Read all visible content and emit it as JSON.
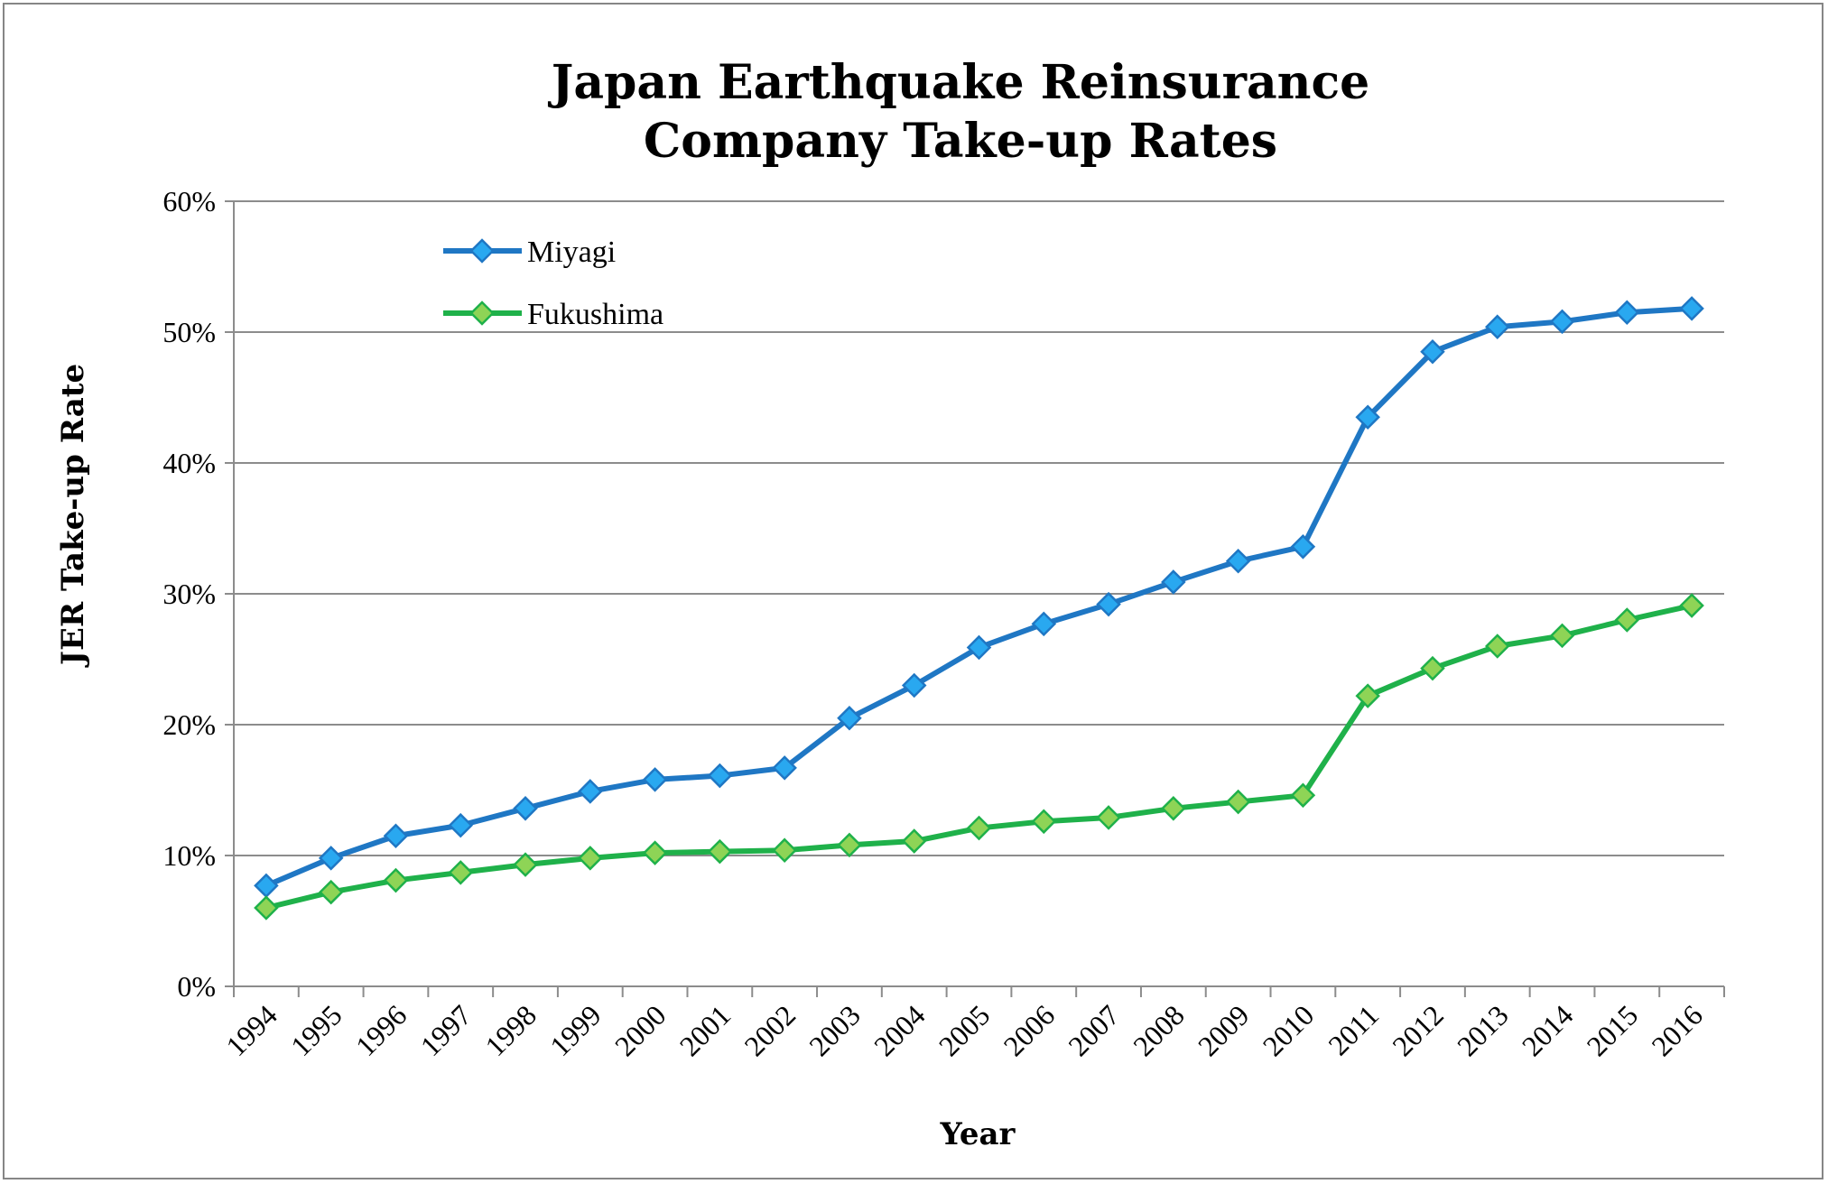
{
  "chart_data": {
    "type": "line",
    "title": [
      "Japan Earthquake Reinsurance",
      "Company Take-up Rates"
    ],
    "xlabel": "Year",
    "ylabel": "JER Take-up Rate",
    "categories": [
      "1994",
      "1995",
      "1996",
      "1997",
      "1998",
      "1999",
      "2000",
      "2001",
      "2002",
      "2003",
      "2004",
      "2005",
      "2006",
      "2007",
      "2008",
      "2009",
      "2010",
      "2011",
      "2012",
      "2013",
      "2014",
      "2015",
      "2016"
    ],
    "ylim": [
      0,
      60
    ],
    "yticks": [
      0,
      10,
      20,
      30,
      40,
      50,
      60
    ],
    "ytick_labels": [
      "0%",
      "10%",
      "20%",
      "30%",
      "40%",
      "50%",
      "60%"
    ],
    "grid": "horizontal",
    "legend": "top-left",
    "series": [
      {
        "name": "Miyagi",
        "color": "#1f77c4",
        "marker_fill": "#29a8f0",
        "values": [
          7.7,
          9.8,
          11.5,
          12.3,
          13.6,
          14.9,
          15.8,
          16.1,
          16.7,
          20.5,
          23.0,
          25.9,
          27.7,
          29.2,
          30.9,
          32.5,
          33.6,
          43.5,
          48.5,
          50.4,
          50.8,
          51.5,
          51.8
        ]
      },
      {
        "name": "Fukushima",
        "color": "#1fb14a",
        "marker_fill": "#8ed456",
        "values": [
          6.0,
          7.2,
          8.1,
          8.7,
          9.3,
          9.8,
          10.2,
          10.3,
          10.4,
          10.8,
          11.1,
          12.1,
          12.6,
          12.9,
          13.6,
          14.1,
          14.6,
          22.2,
          24.3,
          26.0,
          26.8,
          28.0,
          29.1
        ]
      }
    ]
  }
}
